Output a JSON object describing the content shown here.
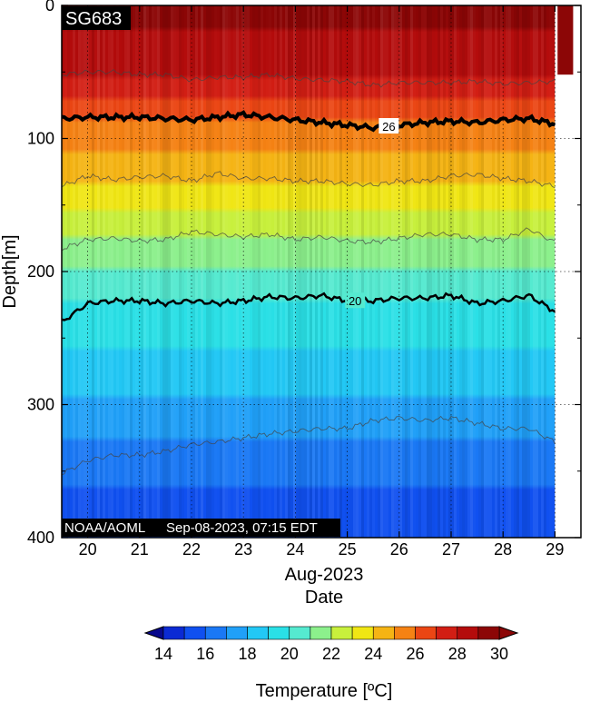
{
  "chart_data": {
    "type": "heatmap",
    "plot_label": "SG683",
    "credit": "NOAA/AOML",
    "timestamp": "Sep-08-2023, 07:15 EDT",
    "xlabel_month": "Aug-2023",
    "xlabel": "Date",
    "ylabel": "Depth[m]",
    "xlim": [
      19.5,
      29.5
    ],
    "ylim": [
      0,
      400
    ],
    "y_inverted": true,
    "x_ticks": [
      20,
      21,
      22,
      23,
      24,
      25,
      26,
      27,
      28,
      29
    ],
    "y_ticks": [
      0,
      100,
      200,
      300,
      400
    ],
    "grid": true,
    "data_end_day": 29.0,
    "colorbar": {
      "label": "Temperature [ºC]",
      "min": 14,
      "max": 30,
      "step": 1,
      "ticks": [
        14,
        16,
        18,
        20,
        22,
        24,
        26,
        28,
        30
      ],
      "colors": [
        "#08088c",
        "#0b2ad4",
        "#1050f0",
        "#1a78f5",
        "#20a0f8",
        "#22c8f5",
        "#2ae0e6",
        "#55ead0",
        "#8cf08c",
        "#c8f03c",
        "#f0e614",
        "#f5b414",
        "#f58214",
        "#eb4614",
        "#d21e14",
        "#b40c0c",
        "#8c0606"
      ]
    },
    "surface_column": {
      "day_start": 29.05,
      "day_end": 29.35,
      "depth_max": 52,
      "temperature": 30
    },
    "contours": [
      {
        "level": 28,
        "weight": "thin",
        "label": ""
      },
      {
        "level": 26,
        "weight": "bold",
        "label": "26",
        "label_day": 25.8
      },
      {
        "level": 24,
        "weight": "thin",
        "label": ""
      },
      {
        "level": 22,
        "weight": "thin",
        "label": ""
      },
      {
        "level": 20,
        "weight": "bold",
        "label": "20",
        "label_day": 25.15
      },
      {
        "level": 17,
        "weight": "thin",
        "label": ""
      }
    ],
    "isotherm_depths": {
      "days": [
        19.5,
        20.0,
        20.5,
        21.0,
        21.5,
        22.0,
        22.5,
        23.0,
        23.5,
        24.0,
        24.5,
        25.0,
        25.5,
        26.0,
        26.5,
        27.0,
        27.5,
        28.0,
        28.5,
        29.0
      ],
      "t28": [
        52,
        50,
        50,
        52,
        52,
        56,
        54,
        54,
        52,
        55,
        56,
        57,
        60,
        58,
        58,
        58,
        57,
        59,
        58,
        57
      ],
      "t26": [
        85,
        84,
        84,
        84,
        85,
        86,
        84,
        82,
        84,
        86,
        88,
        90,
        92,
        90,
        88,
        87,
        88,
        86,
        85,
        89
      ],
      "t24": [
        136,
        128,
        131,
        129,
        128,
        132,
        126,
        130,
        130,
        132,
        132,
        134,
        135,
        132,
        132,
        128,
        127,
        130,
        132,
        136
      ],
      "t22": [
        183,
        176,
        175,
        177,
        176,
        170,
        172,
        174,
        172,
        176,
        174,
        177,
        178,
        175,
        172,
        172,
        176,
        176,
        168,
        178
      ],
      "t20": [
        238,
        224,
        222,
        222,
        224,
        222,
        224,
        222,
        219,
        220,
        218,
        222,
        222,
        220,
        220,
        218,
        224,
        222,
        218,
        230
      ],
      "t17": [
        352,
        342,
        338,
        338,
        335,
        330,
        328,
        325,
        322,
        320,
        318,
        318,
        312,
        310,
        312,
        310,
        314,
        318,
        318,
        328
      ]
    },
    "temperature_profile": {
      "depth": [
        0,
        52,
        86,
        132,
        175,
        222,
        270,
        325,
        400
      ],
      "temperature": [
        29.5,
        28,
        26,
        24,
        22,
        20,
        18.7,
        17,
        15
      ]
    }
  }
}
